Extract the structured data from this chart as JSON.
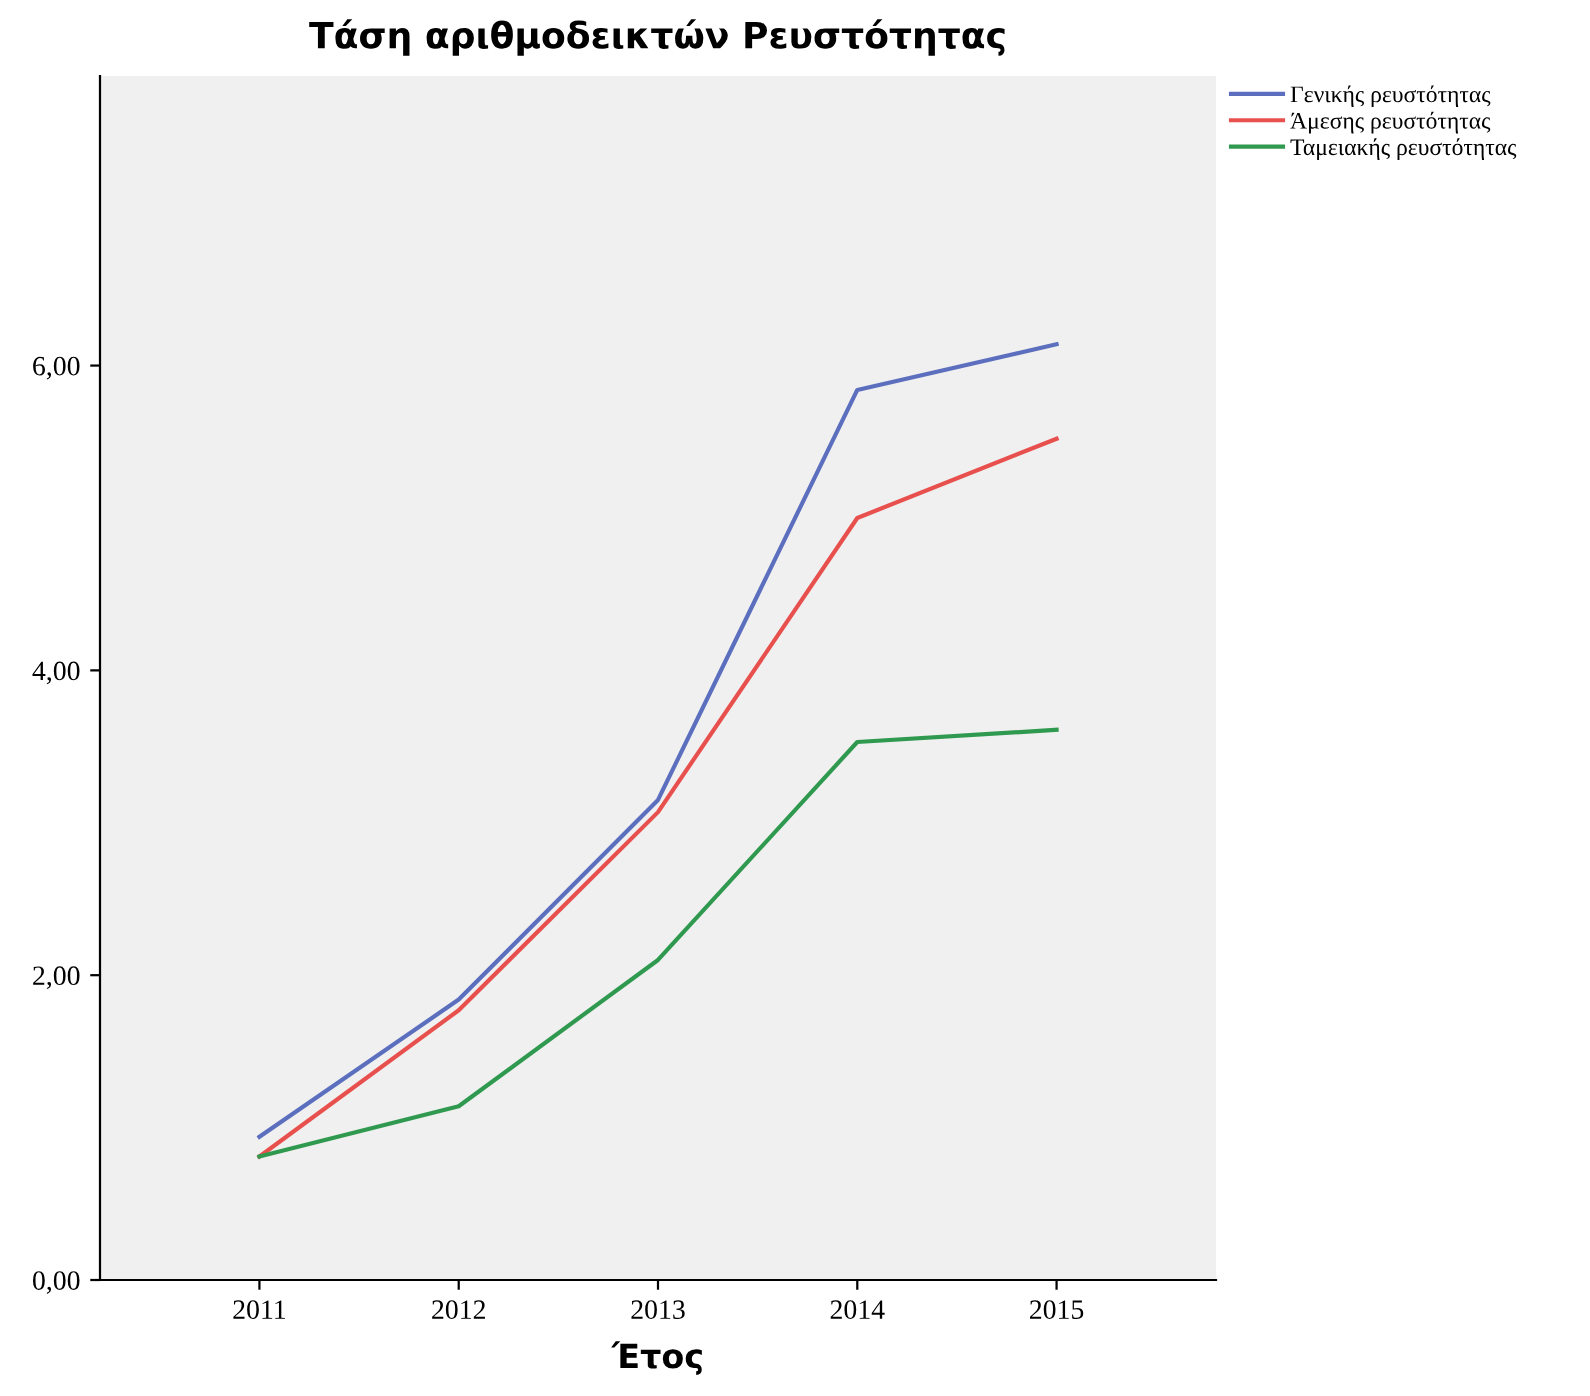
{
  "chart_data": {
    "type": "line",
    "title": "Τάση αριθμοδεικτών Ρευστότητας",
    "xlabel": "Έτος",
    "categories": [
      "2011",
      "2012",
      "2013",
      "2014",
      "2015"
    ],
    "series": [
      {
        "name": "Γενικής ρευστότητας",
        "color": "#5b6fbe",
        "values": [
          0.94,
          1.84,
          3.15,
          5.84,
          6.14
        ]
      },
      {
        "name": "Άμεσης ρευστότητας",
        "color": "#e8504e",
        "values": [
          0.81,
          1.77,
          3.07,
          5.0,
          5.52
        ]
      },
      {
        "name": "Ταμειακής ρευστότητας",
        "color": "#2f9a4f",
        "values": [
          0.81,
          1.14,
          2.1,
          3.53,
          3.61
        ]
      }
    ],
    "ylim": [
      0,
      7.9
    ],
    "yticks": [
      {
        "value": 0,
        "label": "0,00"
      },
      {
        "value": 2,
        "label": "2,00"
      },
      {
        "value": 4,
        "label": "4,00"
      },
      {
        "value": 6,
        "label": "6,00"
      }
    ],
    "grid": false,
    "legend": "top right",
    "marker": "none",
    "line_style": "solid"
  }
}
